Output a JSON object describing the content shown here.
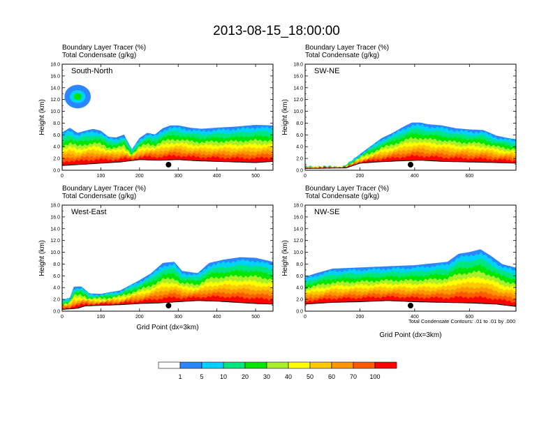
{
  "chart_data": {
    "type": "cross-section",
    "title": "2013-08-15_18:00:00",
    "colorbar": {
      "boundaries": [
        "1",
        "5",
        "10",
        "20",
        "30",
        "40",
        "50",
        "60",
        "70",
        "100"
      ],
      "colors": [
        "#ffffff",
        "#2b87ff",
        "#00d2ff",
        "#00e67e",
        "#00e600",
        "#aaf02a",
        "#ffff00",
        "#ffc800",
        "#ff9600",
        "#ff5a00",
        "#ff0000"
      ]
    },
    "note": "Total Condensate Contours: .01 to .01 by .000",
    "xlabel": "Grid Point (dx=3km)",
    "panels": [
      {
        "name": "South-North",
        "label": "South-North",
        "line1": "Boundary Layer Tracer   (%)",
        "line2": "Total Condensate   (g/kg)",
        "ylabel": "Height (km)",
        "xlim": [
          0,
          545
        ],
        "xticks": [
          0,
          100,
          200,
          300,
          400,
          500
        ],
        "ylim": [
          0,
          18
        ],
        "yticks": [
          "0.0",
          "2.0",
          "4.0",
          "6.0",
          "8.0",
          "10.0",
          "12.0",
          "14.0",
          "16.0",
          "18.0"
        ],
        "marker_x": 275,
        "terrain": [
          [
            0,
            0.8
          ],
          [
            50,
            1.0
          ],
          [
            100,
            1.2
          ],
          [
            150,
            1.4
          ],
          [
            200,
            1.8
          ],
          [
            250,
            1.7
          ],
          [
            300,
            1.8
          ],
          [
            350,
            1.6
          ],
          [
            400,
            1.5
          ],
          [
            450,
            1.4
          ],
          [
            500,
            1.3
          ],
          [
            545,
            1.5
          ]
        ],
        "top": [
          [
            0,
            6.6
          ],
          [
            20,
            7.4
          ],
          [
            40,
            6.5
          ],
          [
            60,
            6.9
          ],
          [
            80,
            7.2
          ],
          [
            100,
            6.9
          ],
          [
            120,
            5.8
          ],
          [
            140,
            5.7
          ],
          [
            160,
            6.2
          ],
          [
            180,
            3.6
          ],
          [
            200,
            5.6
          ],
          [
            220,
            6.5
          ],
          [
            240,
            6.2
          ],
          [
            260,
            7.3
          ],
          [
            280,
            7.8
          ],
          [
            300,
            7.8
          ],
          [
            330,
            7.4
          ],
          [
            360,
            7.2
          ],
          [
            400,
            7.4
          ],
          [
            450,
            7.6
          ],
          [
            500,
            7.9
          ],
          [
            545,
            7.8
          ]
        ],
        "cloud": {
          "cx": 40,
          "cy": 12.5,
          "rx": 34,
          "ry": 2.0
        }
      },
      {
        "name": "SW-NE",
        "label": "SW-NE",
        "line1": "Boundary Layer Tracer   (%)",
        "line2": "Total Condensate   (g/kg)",
        "ylabel": "Height (km)",
        "xlim": [
          0,
          770
        ],
        "xticks": [
          0,
          200,
          400,
          600
        ],
        "ylim": [
          0,
          18
        ],
        "yticks": [
          "0.0",
          "2.0",
          "4.0",
          "6.0",
          "8.0",
          "10.0",
          "12.0",
          "14.0",
          "16.0",
          "18.0"
        ],
        "marker_x": 385,
        "terrain": [
          [
            0,
            0.3
          ],
          [
            150,
            0.4
          ],
          [
            200,
            1.2
          ],
          [
            260,
            1.4
          ],
          [
            350,
            1.6
          ],
          [
            420,
            1.7
          ],
          [
            500,
            1.5
          ],
          [
            600,
            1.4
          ],
          [
            700,
            1.3
          ],
          [
            770,
            1.2
          ]
        ],
        "top": [
          [
            0,
            0.6
          ],
          [
            140,
            0.6
          ],
          [
            170,
            1.6
          ],
          [
            200,
            2.8
          ],
          [
            240,
            4.2
          ],
          [
            280,
            5.6
          ],
          [
            320,
            6.5
          ],
          [
            360,
            7.6
          ],
          [
            390,
            8.3
          ],
          [
            420,
            8.3
          ],
          [
            450,
            8.0
          ],
          [
            500,
            7.8
          ],
          [
            550,
            7.3
          ],
          [
            600,
            7.1
          ],
          [
            650,
            7.0
          ],
          [
            700,
            6.0
          ],
          [
            740,
            5.6
          ],
          [
            770,
            5.4
          ]
        ],
        "cloud": null
      },
      {
        "name": "West-East",
        "label": "West-East",
        "line1": "Boundary Layer Tracer   (%)",
        "line2": "Total Condensate   (g/kg)",
        "ylabel": "Height (km)",
        "xlim": [
          0,
          545
        ],
        "xticks": [
          0,
          100,
          200,
          300,
          400,
          500
        ],
        "ylim": [
          0,
          18
        ],
        "yticks": [
          "0.0",
          "2.0",
          "4.0",
          "6.0",
          "8.0",
          "10.0",
          "12.0",
          "14.0",
          "16.0",
          "18.0"
        ],
        "marker_x": 275,
        "terrain": [
          [
            0,
            0.3
          ],
          [
            40,
            0.5
          ],
          [
            60,
            0.9
          ],
          [
            100,
            1.0
          ],
          [
            150,
            1.1
          ],
          [
            200,
            1.3
          ],
          [
            250,
            1.4
          ],
          [
            300,
            1.6
          ],
          [
            350,
            1.8
          ],
          [
            400,
            1.7
          ],
          [
            450,
            1.5
          ],
          [
            500,
            1.3
          ],
          [
            545,
            1.2
          ]
        ],
        "top": [
          [
            0,
            2.0
          ],
          [
            20,
            2.3
          ],
          [
            30,
            4.3
          ],
          [
            50,
            4.3
          ],
          [
            70,
            3.1
          ],
          [
            100,
            3.0
          ],
          [
            150,
            3.6
          ],
          [
            200,
            5.4
          ],
          [
            230,
            6.6
          ],
          [
            260,
            8.4
          ],
          [
            290,
            8.6
          ],
          [
            310,
            7.0
          ],
          [
            350,
            6.6
          ],
          [
            380,
            8.4
          ],
          [
            420,
            9.0
          ],
          [
            460,
            9.4
          ],
          [
            500,
            9.3
          ],
          [
            545,
            8.6
          ]
        ],
        "cloud": null
      },
      {
        "name": "NW-SE",
        "label": "NW-SE",
        "line1": "Boundary Layer Tracer   (%)",
        "line2": "Total Condensate   (g/kg)",
        "ylabel": "Height (km)",
        "xlim": [
          0,
          770
        ],
        "xticks": [
          0,
          200,
          400,
          600
        ],
        "ylim": [
          0,
          18
        ],
        "yticks": [
          "0.0",
          "2.0",
          "4.0",
          "6.0",
          "8.0",
          "10.0",
          "12.0",
          "14.0",
          "16.0",
          "18.0"
        ],
        "marker_x": 385,
        "terrain": [
          [
            0,
            1.2
          ],
          [
            100,
            1.5
          ],
          [
            200,
            1.6
          ],
          [
            300,
            1.8
          ],
          [
            400,
            1.6
          ],
          [
            500,
            1.5
          ],
          [
            600,
            1.4
          ],
          [
            700,
            1.2
          ],
          [
            770,
            0.8
          ]
        ],
        "top": [
          [
            0,
            6.0
          ],
          [
            40,
            6.6
          ],
          [
            100,
            7.4
          ],
          [
            200,
            7.6
          ],
          [
            300,
            7.8
          ],
          [
            400,
            8.0
          ],
          [
            480,
            8.4
          ],
          [
            520,
            8.6
          ],
          [
            560,
            10.0
          ],
          [
            600,
            10.3
          ],
          [
            640,
            10.8
          ],
          [
            680,
            9.6
          ],
          [
            720,
            8.2
          ],
          [
            770,
            7.6
          ]
        ],
        "cloud": null
      }
    ]
  }
}
